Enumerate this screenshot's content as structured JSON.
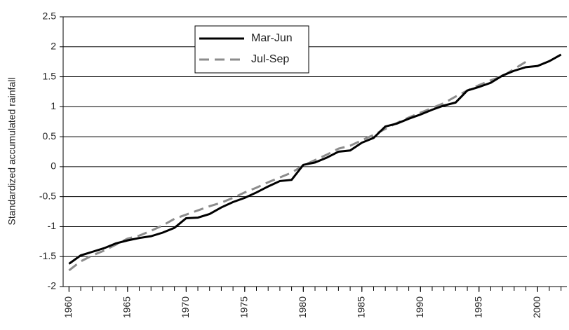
{
  "chart_data": {
    "type": "line",
    "y_label": "Standardized accumulated rainfall",
    "xlim": [
      1959.5,
      2002.5
    ],
    "xticks": [
      1960,
      1965,
      1970,
      1975,
      1980,
      1985,
      1990,
      1995,
      2000
    ],
    "ylim": [
      -2,
      2.5
    ],
    "yticks": [
      -2,
      -1.5,
      -1,
      -0.5,
      0,
      0.5,
      1,
      1.5,
      2,
      2.5
    ],
    "grid": true,
    "series": [
      {
        "name": "Mar-Jun",
        "color": "#000000",
        "dash": "solid",
        "x": [
          1960,
          1961,
          1962,
          1963,
          1964,
          1965,
          1966,
          1967,
          1968,
          1969,
          1970,
          1971,
          1972,
          1973,
          1974,
          1975,
          1976,
          1977,
          1978,
          1979,
          1980,
          1981,
          1982,
          1983,
          1984,
          1985,
          1986,
          1987,
          1988,
          1989,
          1990,
          1991,
          1992,
          1993,
          1994,
          1995,
          1996,
          1997,
          1998,
          1999,
          2000,
          2001,
          2002
        ],
        "values": [
          -1.62,
          -1.48,
          -1.42,
          -1.36,
          -1.28,
          -1.23,
          -1.19,
          -1.16,
          -1.1,
          -1.02,
          -0.86,
          -0.85,
          -0.79,
          -0.68,
          -0.59,
          -0.52,
          -0.43,
          -0.33,
          -0.24,
          -0.22,
          0.03,
          0.07,
          0.15,
          0.25,
          0.27,
          0.4,
          0.48,
          0.67,
          0.72,
          0.8,
          0.87,
          0.95,
          1.02,
          1.07,
          1.27,
          1.33,
          1.4,
          1.52,
          1.6,
          1.66,
          1.68,
          1.76,
          1.87
        ]
      },
      {
        "name": "Jul-Sep",
        "color": "#8c8c8c",
        "dash": "dashed",
        "x": [
          1960,
          1961,
          1962,
          1963,
          1964,
          1965,
          1966,
          1967,
          1968,
          1969,
          1970,
          1971,
          1972,
          1973,
          1974,
          1975,
          1976,
          1977,
          1978,
          1979,
          1980,
          1981,
          1982,
          1983,
          1984,
          1985,
          1986,
          1987,
          1988,
          1989,
          1990,
          1991,
          1992,
          1993,
          1994,
          1995,
          1996,
          1997,
          1998,
          1999
        ],
        "values": [
          -1.73,
          -1.58,
          -1.48,
          -1.4,
          -1.3,
          -1.2,
          -1.15,
          -1.07,
          -0.98,
          -0.87,
          -0.8,
          -0.73,
          -0.66,
          -0.6,
          -0.52,
          -0.43,
          -0.35,
          -0.26,
          -0.18,
          -0.1,
          0.02,
          0.11,
          0.2,
          0.3,
          0.35,
          0.44,
          0.53,
          0.63,
          0.73,
          0.82,
          0.9,
          0.98,
          1.06,
          1.17,
          1.27,
          1.36,
          1.44,
          1.51,
          1.63,
          1.75
        ]
      }
    ]
  }
}
